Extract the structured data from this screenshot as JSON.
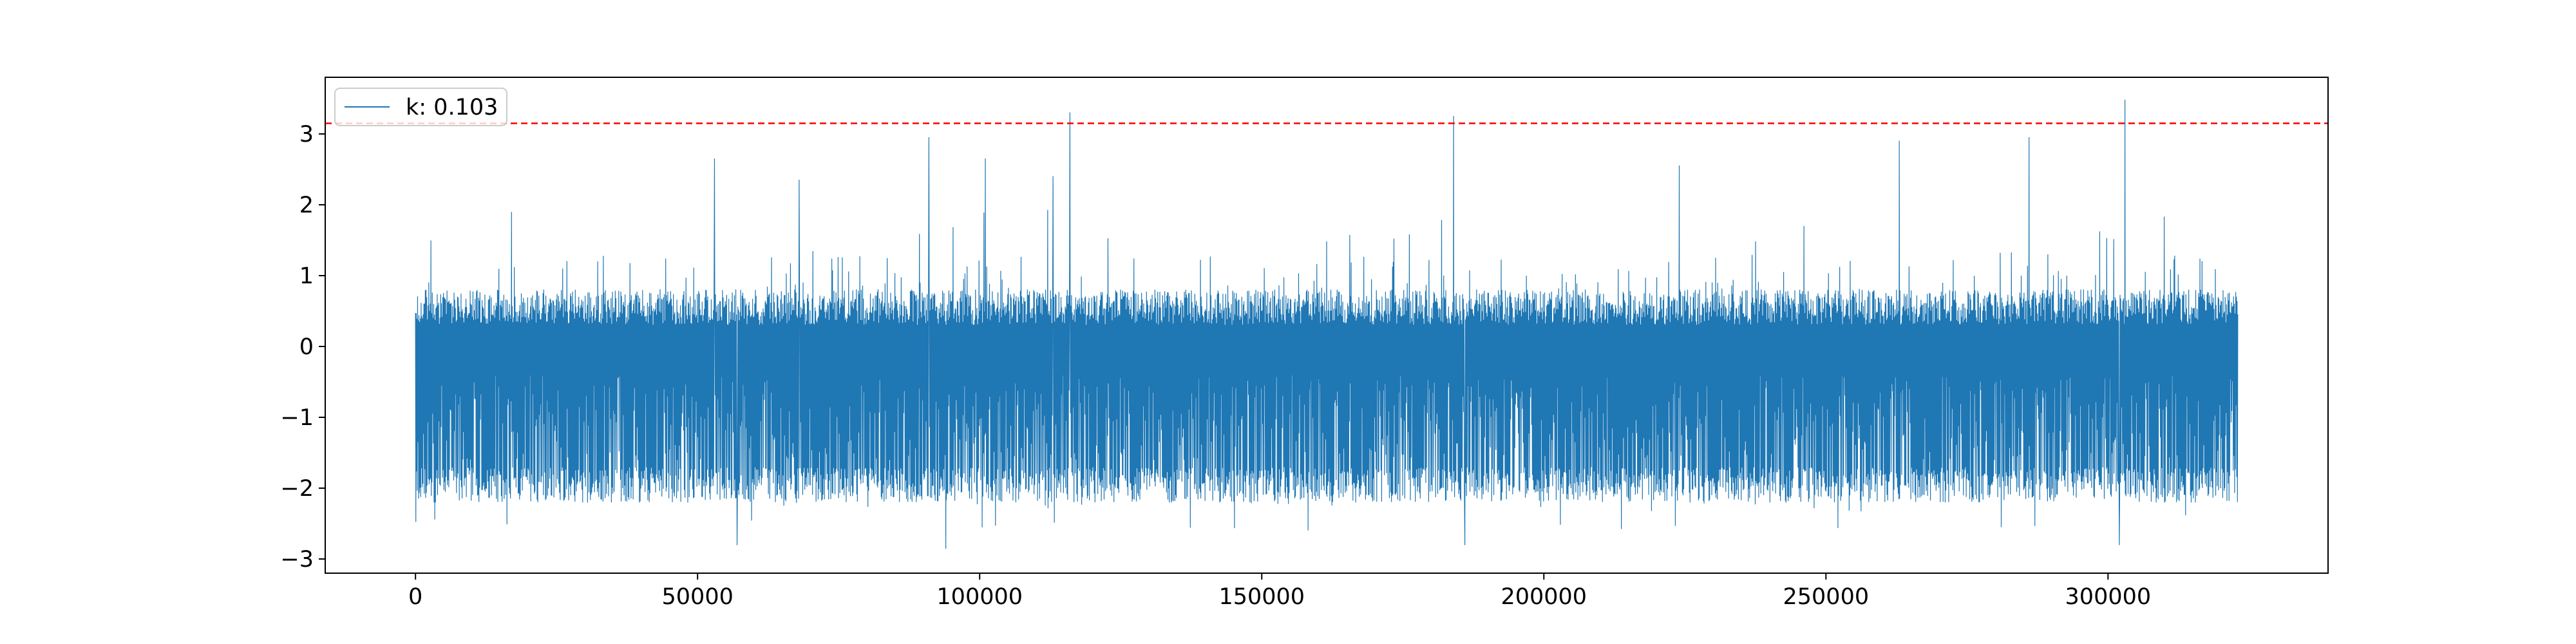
{
  "chart_data": {
    "type": "line",
    "title": "",
    "xlabel": "",
    "ylabel": "",
    "xlim": [
      -16000,
      339000
    ],
    "ylim": [
      -3.2,
      3.8
    ],
    "xticks": [
      {
        "value": 0,
        "label": "0"
      },
      {
        "value": 50000,
        "label": "50000"
      },
      {
        "value": 100000,
        "label": "100000"
      },
      {
        "value": 150000,
        "label": "150000"
      },
      {
        "value": 200000,
        "label": "200000"
      },
      {
        "value": 250000,
        "label": "250000"
      },
      {
        "value": 300000,
        "label": "300000"
      }
    ],
    "yticks": [
      {
        "value": -3,
        "label": "−3"
      },
      {
        "value": -2,
        "label": "−2"
      },
      {
        "value": -1,
        "label": "−1"
      },
      {
        "value": 0,
        "label": "0"
      },
      {
        "value": 1,
        "label": "1"
      },
      {
        "value": 2,
        "label": "2"
      },
      {
        "value": 3,
        "label": "3"
      }
    ],
    "grid": false,
    "legend_position": "top-left",
    "series": [
      {
        "name": "k: 0.103",
        "color": "#1f77b4",
        "x_range": [
          0,
          323000
        ],
        "typical_band": [
          -2.2,
          0.8
        ],
        "observed_min": -2.85,
        "observed_max": 3.48,
        "spikes": [
          {
            "x": 53000,
            "y": 2.65
          },
          {
            "x": 68000,
            "y": 2.35
          },
          {
            "x": 91000,
            "y": 2.95
          },
          {
            "x": 101000,
            "y": 2.65
          },
          {
            "x": 113000,
            "y": 2.4
          },
          {
            "x": 116000,
            "y": 3.3
          },
          {
            "x": 184000,
            "y": 3.25
          },
          {
            "x": 224000,
            "y": 2.55
          },
          {
            "x": 263000,
            "y": 2.9
          },
          {
            "x": 286000,
            "y": 2.95
          },
          {
            "x": 303000,
            "y": 3.48
          },
          {
            "x": 57000,
            "y": -2.8
          },
          {
            "x": 94000,
            "y": -2.85
          },
          {
            "x": 186000,
            "y": -2.8
          },
          {
            "x": 302000,
            "y": -2.8
          }
        ]
      }
    ],
    "threshold": {
      "y": 3.15,
      "color": "#ff0000",
      "style": "dashed"
    }
  }
}
